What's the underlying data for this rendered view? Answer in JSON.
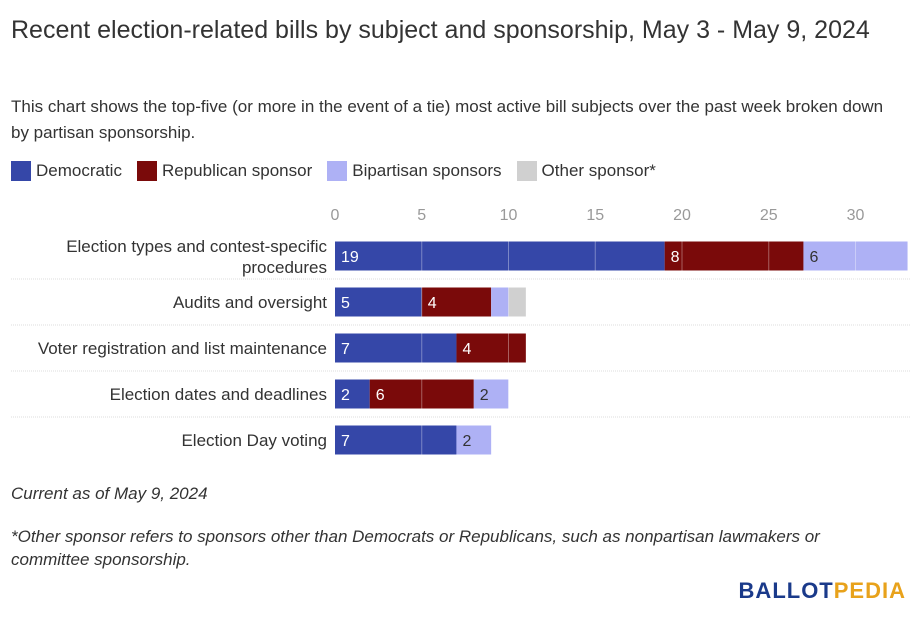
{
  "title": "Recent election-related bills by subject and sponsorship, May 3 - May 9, 2024",
  "subtitle": "This chart shows the top-five (or more in the event of a tie) most active bill subjects over the past week broken down by partisan sponsorship.",
  "legend": [
    {
      "label": "Democratic",
      "color": "#3547a8"
    },
    {
      "label": "Republican sponsor",
      "color": "#7a0a0a"
    },
    {
      "label": "Bipartisan sponsors",
      "color": "#aeb1f5"
    },
    {
      "label": "Other sponsor*",
      "color": "#d0d0d0"
    }
  ],
  "chart_data": {
    "type": "bar",
    "orientation": "horizontal",
    "stacked": true,
    "categories": [
      "Election types and contest-specific procedures",
      "Audits and oversight",
      "Voter registration and list maintenance",
      "Election dates and deadlines",
      "Election Day voting"
    ],
    "series": [
      {
        "name": "Democratic",
        "color": "#3547a8",
        "values": [
          19,
          5,
          7,
          2,
          7
        ]
      },
      {
        "name": "Republican sponsor",
        "color": "#7a0a0a",
        "values": [
          8,
          4,
          4,
          6,
          0
        ]
      },
      {
        "name": "Bipartisan sponsors",
        "color": "#aeb1f5",
        "values": [
          6,
          1,
          0,
          2,
          2
        ]
      },
      {
        "name": "Other sponsor*",
        "color": "#d0d0d0",
        "values": [
          0,
          1,
          0,
          0,
          0
        ]
      }
    ],
    "data_labels": [
      [
        "19",
        "8",
        "6",
        ""
      ],
      [
        "5",
        "4",
        "",
        ""
      ],
      [
        "7",
        "4",
        "",
        ""
      ],
      [
        "2",
        "6",
        "2",
        ""
      ],
      [
        "7",
        "",
        "2",
        ""
      ]
    ],
    "x_ticks": [
      0,
      5,
      10,
      15,
      20,
      25,
      30
    ],
    "xlim": [
      0,
      33
    ],
    "grid": true,
    "legend_position": "top-left"
  },
  "notes": {
    "current": "Current as of May 9, 2024",
    "footnote": "*Other sponsor refers to sponsors other than Democrats or Republicans, such as nonpartisan lawmakers or committee sponsorship."
  },
  "logo": {
    "part1": "BALLOT",
    "part2": "PEDIA"
  }
}
